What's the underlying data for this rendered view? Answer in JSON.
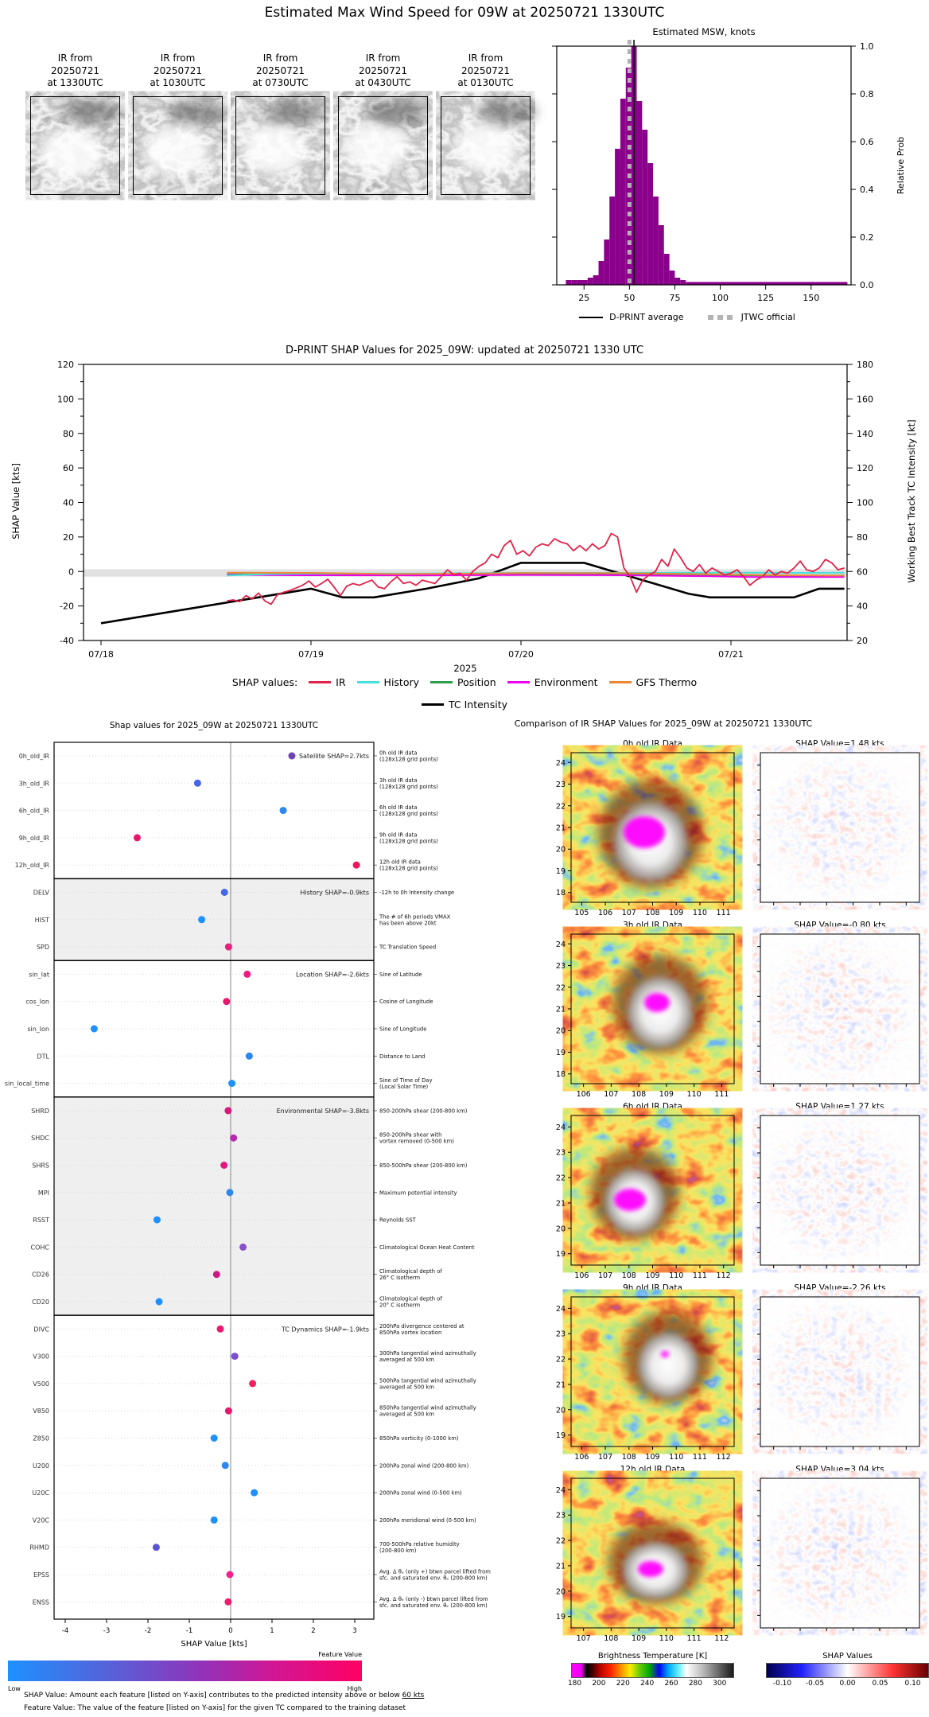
{
  "page_title": "Estimated Max Wind Speed for 09W at 20250721 1330UTC",
  "ir_thumbnails": [
    {
      "label": "IR from\n20250721\nat 1330UTC"
    },
    {
      "label": "IR from\n20250721\nat 1030UTC"
    },
    {
      "label": "IR from\n20250721\nat 0730UTC"
    },
    {
      "label": "IR from\n20250721\nat 0430UTC"
    },
    {
      "label": "IR from\n20250721\nat 0130UTC"
    }
  ],
  "chart_data": [
    {
      "type": "bar",
      "title": "Estimated MSW, knots",
      "ylabel": "Relative Prob",
      "yticks": [
        0.0,
        0.2,
        0.4,
        0.6,
        0.8,
        1.0
      ],
      "xticks": [
        25,
        50,
        75,
        100,
        125,
        150
      ],
      "xlim": [
        10,
        172
      ],
      "ylim": [
        0,
        1.05
      ],
      "bar_color": "#8B008B",
      "bin_width": 3,
      "bins": [
        [
          15,
          0.02
        ],
        [
          18,
          0.02
        ],
        [
          21,
          0.02
        ],
        [
          24,
          0.02
        ],
        [
          27,
          0.03
        ],
        [
          30,
          0.04
        ],
        [
          33,
          0.1
        ],
        [
          36,
          0.19
        ],
        [
          39,
          0.37
        ],
        [
          42,
          0.57
        ],
        [
          45,
          0.78
        ],
        [
          48,
          0.91
        ],
        [
          51,
          1.0
        ],
        [
          54,
          0.77
        ],
        [
          57,
          0.65
        ],
        [
          60,
          0.51
        ],
        [
          63,
          0.37
        ],
        [
          66,
          0.25
        ],
        [
          69,
          0.13
        ],
        [
          72,
          0.06
        ],
        [
          75,
          0.03
        ],
        [
          78,
          0.02
        ]
      ],
      "tail": {
        "from": 81,
        "to": 170,
        "h": 0.012
      },
      "dprint_average": 52.5,
      "jtwc_official": 50,
      "legend": [
        {
          "label": "D-PRINT average",
          "style": "solid-black"
        },
        {
          "label": "JTWC official",
          "style": "dashed-gray"
        }
      ]
    },
    {
      "type": "line",
      "title": "D-PRINT SHAP Values for 2025_09W: updated at 20250721 1330 UTC",
      "ylabel_left": "SHAP Value [kts]",
      "ylabel_right": "Working Best Track TC Intensity [kt]",
      "xlabel": "2025",
      "xticks": [
        "07/18",
        "07/19",
        "07/20",
        "07/21"
      ],
      "ylim_left": [
        -40,
        120
      ],
      "ylim_right": [
        20,
        180
      ],
      "yticks_left": [
        -40,
        -20,
        0,
        20,
        40,
        60,
        80,
        100,
        120
      ],
      "yticks_right": [
        20,
        40,
        60,
        80,
        100,
        120,
        140,
        160,
        180
      ],
      "band": [
        -3.0,
        1.3
      ],
      "band_color": "#d9d9d9",
      "legend_label": "SHAP values:",
      "legend_row1": [
        {
          "label": "IR",
          "color": "#e32249"
        },
        {
          "label": "History",
          "color": "#45e0d8"
        },
        {
          "label": "Position",
          "color": "#2e9e50"
        },
        {
          "label": "Environment",
          "color": "#ee00ee"
        },
        {
          "label": "GFS Thermo",
          "color": "#ef8636"
        }
      ],
      "legend_row2": [
        {
          "label": "TC Intensity",
          "color": "#000000"
        }
      ],
      "series": [
        {
          "name": "TC Intensity",
          "color": "#000000",
          "axis": "right",
          "width": 2.6,
          "points": [
            [
              0,
              30
            ],
            [
              1.0,
              50
            ],
            [
              1.15,
              45
            ],
            [
              1.3,
              45
            ],
            [
              1.55,
              50
            ],
            [
              1.8,
              56
            ],
            [
              2.0,
              65
            ],
            [
              2.3,
              65
            ],
            [
              2.55,
              56
            ],
            [
              2.8,
              47
            ],
            [
              2.9,
              45
            ],
            [
              3.3,
              45
            ],
            [
              3.42,
              50
            ],
            [
              3.54,
              50
            ]
          ]
        },
        {
          "name": "Position",
          "color": "#2e9e50",
          "axis": "left",
          "width": 2,
          "points": [
            [
              0.6,
              -1.6
            ],
            [
              1.0,
              -1.8
            ],
            [
              1.5,
              -1.8
            ],
            [
              2.0,
              -1.5
            ],
            [
              2.5,
              -1.5
            ],
            [
              3.0,
              -2.2
            ],
            [
              3.3,
              -2.4
            ],
            [
              3.54,
              -2.3
            ]
          ]
        },
        {
          "name": "Environment",
          "color": "#ee00ee",
          "axis": "left",
          "width": 2,
          "points": [
            [
              0.6,
              -1.9
            ],
            [
              1.0,
              -2.2
            ],
            [
              1.5,
              -2.3
            ],
            [
              2.0,
              -2.0
            ],
            [
              2.5,
              -2.2
            ],
            [
              2.9,
              -2.8
            ],
            [
              3.1,
              -3.2
            ],
            [
              3.54,
              -3.2
            ]
          ]
        },
        {
          "name": "History",
          "color": "#45e0d8",
          "axis": "left",
          "width": 2,
          "points": [
            [
              0.6,
              -2.3
            ],
            [
              0.8,
              -1.5
            ],
            [
              1.0,
              -1.2
            ],
            [
              1.5,
              -1.2
            ],
            [
              2.0,
              -0.8
            ],
            [
              2.5,
              -0.8
            ],
            [
              3.0,
              -0.6
            ],
            [
              3.3,
              -0.8
            ],
            [
              3.54,
              -0.7
            ]
          ]
        },
        {
          "name": "GFS Thermo",
          "color": "#ef8636",
          "axis": "left",
          "width": 2,
          "points": [
            [
              0.6,
              -0.7
            ],
            [
              1.0,
              -0.8
            ],
            [
              1.4,
              -1.5
            ],
            [
              1.8,
              -1.2
            ],
            [
              2.0,
              -0.9
            ],
            [
              2.5,
              -1.0
            ],
            [
              3.0,
              -1.8
            ],
            [
              3.3,
              -2.2
            ],
            [
              3.54,
              -2.4
            ]
          ]
        },
        {
          "name": "IR",
          "color": "#e32249",
          "axis": "left",
          "width": 1.8,
          "x0": 0.6,
          "dx": 0.03,
          "values": [
            -17,
            -16.5,
            -17.5,
            -14,
            -16,
            -12.5,
            -17,
            -19,
            -13.5,
            -12,
            -11,
            -9.5,
            -8,
            -5.5,
            -9,
            -7,
            -4.5,
            -9,
            -14,
            -8.5,
            -7,
            -8,
            -6.5,
            -5,
            -9,
            -10,
            -6,
            -3,
            -7,
            -6,
            -8,
            -5,
            -6,
            -7,
            -3,
            1,
            -2,
            -1,
            -5,
            0,
            3,
            5,
            10,
            8,
            15,
            18,
            10,
            12,
            9,
            14,
            16,
            15,
            19,
            17,
            16,
            12,
            15,
            12,
            16,
            13,
            15,
            22,
            20,
            2,
            -3,
            -12,
            -5,
            -2,
            0,
            7,
            3,
            13,
            8,
            2,
            0,
            4,
            -1,
            2,
            0,
            -2,
            -1,
            1,
            -3,
            -8,
            -5,
            -3,
            1,
            -2,
            0,
            -1,
            2,
            6,
            1,
            0,
            2,
            7,
            5,
            1,
            2
          ]
        }
      ]
    },
    {
      "type": "scatter",
      "title": "Shap values for 2025_09W at 20250721 1330UTC",
      "xlabel": "SHAP Value [kts]",
      "xticks": [
        -4,
        -3,
        -2,
        -1,
        0,
        1,
        2,
        3
      ],
      "xlim": [
        -4.27,
        3.46
      ],
      "colorbar_title": "Feature Value",
      "colorbar_low": "Low",
      "colorbar_high": "High",
      "footnote1_pre": "SHAP Value: Amount each feature [listed on Y-axis] contributes to the predicted intensity above or below ",
      "footnote1_u": "60 kts",
      "footnote2": "Feature Value: The value of the feature [listed on Y-axis] for the given TC compared to the training dataset",
      "sections": [
        {
          "label": "Satellite SHAP=2.7kts",
          "shaded": false,
          "features": [
            {
              "name": "0h_old_IR",
              "value": 1.48,
              "color": "#6f42b8",
              "desc": "0h old IR data\n(128x128 grid points)"
            },
            {
              "name": "3h_old_IR",
              "value": -0.8,
              "color": "#4466e8",
              "desc": "3h old IR data\n(128x128 grid points)"
            },
            {
              "name": "6h_old_IR",
              "value": 1.27,
              "color": "#2e86f0",
              "desc": "6h old IR data\n(128x128 grid points)"
            },
            {
              "name": "9h_old_IR",
              "value": -2.26,
              "color": "#e8176e",
              "desc": "9h old IR data\n(128x128 grid points)"
            },
            {
              "name": "12h_old_IR",
              "value": 3.04,
              "color": "#f4145e",
              "desc": "12h old IR data\n(128x128 grid points)"
            }
          ]
        },
        {
          "label": "History SHAP=-0.9kts",
          "shaded": true,
          "features": [
            {
              "name": "DELV",
              "value": -0.15,
              "color": "#4466e8",
              "desc": "-12h to 0h Intensity change"
            },
            {
              "name": "HIST",
              "value": -0.7,
              "color": "#1e90ff",
              "desc": "The # of 6h periods VMAX\nhas been above 20kt"
            },
            {
              "name": "SPD",
              "value": -0.05,
              "color": "#ee1b80",
              "desc": "TC Translation Speed"
            }
          ]
        },
        {
          "label": "Location SHAP=-2.6kts",
          "shaded": false,
          "features": [
            {
              "name": "sin_lat",
              "value": 0.4,
              "color": "#ee1b80",
              "desc": "Sine of Latitude"
            },
            {
              "name": "cos_lon",
              "value": -0.1,
              "color": "#e8176e",
              "desc": "Cosine of Longitude"
            },
            {
              "name": "sin_lon",
              "value": -3.3,
              "color": "#1e90ff",
              "desc": "Sine of Longitude"
            },
            {
              "name": "DTL",
              "value": 0.45,
              "color": "#2e86f0",
              "desc": "Distance to Land"
            },
            {
              "name": "sin_local_time",
              "value": 0.03,
              "color": "#1e90ff",
              "desc": "Sine of Time of Day\n(Local Solar Time)"
            }
          ]
        },
        {
          "label": "Environmental SHAP=-3.8kts",
          "shaded": true,
          "features": [
            {
              "name": "SHRD",
              "value": -0.06,
              "color": "#d6187e",
              "desc": "850-200hPa shear (200-800 km)"
            },
            {
              "name": "SHDC",
              "value": 0.07,
              "color": "#b52bb0",
              "desc": "850-200hPa shear with\nvortex removed (0-500 km)"
            },
            {
              "name": "SHRS",
              "value": -0.16,
              "color": "#e0187f",
              "desc": "850-500hPa shear (200-800 km)"
            },
            {
              "name": "MPI",
              "value": -0.02,
              "color": "#2e86f0",
              "desc": "Maximum potential intensity"
            },
            {
              "name": "RSST",
              "value": -1.78,
              "color": "#1e90ff",
              "desc": "Reynolds SST"
            },
            {
              "name": "COHC",
              "value": 0.3,
              "color": "#8a4fc8",
              "desc": "Climatological Ocean Heat Content"
            },
            {
              "name": "CD26",
              "value": -0.34,
              "color": "#cc1784",
              "desc": "Climatological depth of\n26° C isotherm"
            },
            {
              "name": "CD20",
              "value": -1.73,
              "color": "#1e90ff",
              "desc": "Climatological depth of\n20° C isotherm"
            }
          ]
        },
        {
          "label": "TC Dynamics SHAP=-1.9kts",
          "shaded": false,
          "features": [
            {
              "name": "DIVC",
              "value": -0.25,
              "color": "#ea1a74",
              "desc": "200hPa divergence centered at\n850hPa vortex location"
            },
            {
              "name": "V300",
              "value": 0.1,
              "color": "#7a4fd0",
              "desc": "300hPa tangential wind azimuthally\naveraged at 500 km"
            },
            {
              "name": "V500",
              "value": 0.53,
              "color": "#f41f60",
              "desc": "500hPa tangential wind azimuthally\naveraged at 500 km"
            },
            {
              "name": "V850",
              "value": -0.05,
              "color": "#e8176e",
              "desc": "850hPa tangential wind azimuthally\naveraged at 500 km"
            },
            {
              "name": "Z850",
              "value": -0.4,
              "color": "#1e90ff",
              "desc": "850hPa vorticity (0-1000 km)"
            },
            {
              "name": "U200",
              "value": -0.13,
              "color": "#2e86f0",
              "desc": "200hPa zonal wind (200-800 km)"
            },
            {
              "name": "U20C",
              "value": 0.57,
              "color": "#1e90ff",
              "desc": "200hPa zonal wind (0-500 km)"
            },
            {
              "name": "V20C",
              "value": -0.4,
              "color": "#1e90ff",
              "desc": "200hPa meridional wind (0-500 km)"
            },
            {
              "name": "RHMD",
              "value": -1.8,
              "color": "#5b55d6",
              "desc": "700-500hPa relative humidity\n(200-800 km)"
            },
            {
              "name": "EPSS",
              "value": -0.02,
              "color": "#f0218c",
              "desc": "Avg. Δ θₑ (only +) btwn parcel lifted from\nsfc. and saturated env. θₑ (200-800 km)"
            },
            {
              "name": "ENSS",
              "value": -0.06,
              "color": "#ee1b6e",
              "desc": "Avg. Δ θₑ (only -) btwn parcel lifted from\nsfc. and saturated env. θₑ (200-800 km)"
            }
          ]
        }
      ]
    },
    {
      "type": "heatmap",
      "title": "Comparison of IR SHAP Values for 2025_09W at 20250721 1330UTC",
      "panels": [
        {
          "ir_title": "0h old IR Data",
          "shap_title": "SHAP Value=1.48 kts",
          "xticks": [
            105,
            106,
            107,
            108,
            109,
            110,
            111
          ],
          "yticks": [
            18,
            19,
            20,
            21,
            22,
            23,
            24
          ]
        },
        {
          "ir_title": "3h old IR Data",
          "shap_title": "SHAP Value=-0.80 kts",
          "xticks": [
            106,
            107,
            108,
            109,
            110,
            111
          ],
          "yticks": [
            18,
            19,
            20,
            21,
            22,
            23,
            24
          ]
        },
        {
          "ir_title": "6h old IR Data",
          "shap_title": "SHAP Value=1.27 kts",
          "xticks": [
            106,
            107,
            108,
            109,
            110,
            111,
            112
          ],
          "yticks": [
            19,
            20,
            21,
            22,
            23,
            24
          ]
        },
        {
          "ir_title": "9h old IR Data",
          "shap_title": "SHAP Value=-2.26 kts",
          "xticks": [
            106,
            107,
            108,
            109,
            110,
            111,
            112
          ],
          "yticks": [
            19,
            20,
            21,
            22,
            23,
            24
          ]
        },
        {
          "ir_title": "12h old IR Data",
          "shap_title": "SHAP Value=3.04 kts",
          "xticks": [
            107,
            108,
            109,
            110,
            111,
            112
          ],
          "yticks": [
            19,
            20,
            21,
            22,
            23,
            24
          ]
        }
      ],
      "bt_colorbar": {
        "title": "Brightness Temperature [K]",
        "ticks": [
          180,
          200,
          220,
          240,
          260,
          280,
          300
        ]
      },
      "shap_colorbar": {
        "title": "SHAP Values",
        "ticks": [
          "-0.10",
          "-0.05",
          "0.00",
          "0.05",
          "0.10"
        ]
      }
    }
  ]
}
